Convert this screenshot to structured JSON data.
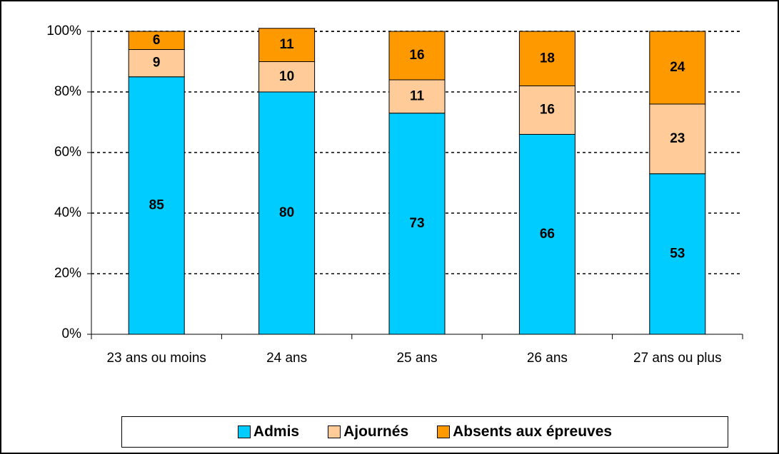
{
  "chart_data": {
    "type": "bar",
    "stacked": true,
    "categories": [
      "23 ans ou moins",
      "24 ans",
      "25 ans",
      "26 ans",
      "27 ans ou plus"
    ],
    "series": [
      {
        "name": "Admis",
        "color": "#00ccff",
        "values": [
          85,
          80,
          73,
          66,
          53
        ]
      },
      {
        "name": "Ajournés",
        "color": "#ffcc99",
        "values": [
          9,
          10,
          11,
          16,
          23
        ]
      },
      {
        "name": "Absents aux épreuves",
        "color": "#ff9900",
        "values": [
          6,
          11,
          16,
          18,
          24
        ]
      }
    ],
    "ylim": [
      0,
      100
    ],
    "yticks": [
      {
        "value": 0,
        "label": "0%"
      },
      {
        "value": 20,
        "label": "20%"
      },
      {
        "value": 40,
        "label": "40%"
      },
      {
        "value": 60,
        "label": "60%"
      },
      {
        "value": 80,
        "label": "80%"
      },
      {
        "value": 100,
        "label": "100%"
      }
    ],
    "grid": true,
    "legend": "bottom"
  }
}
